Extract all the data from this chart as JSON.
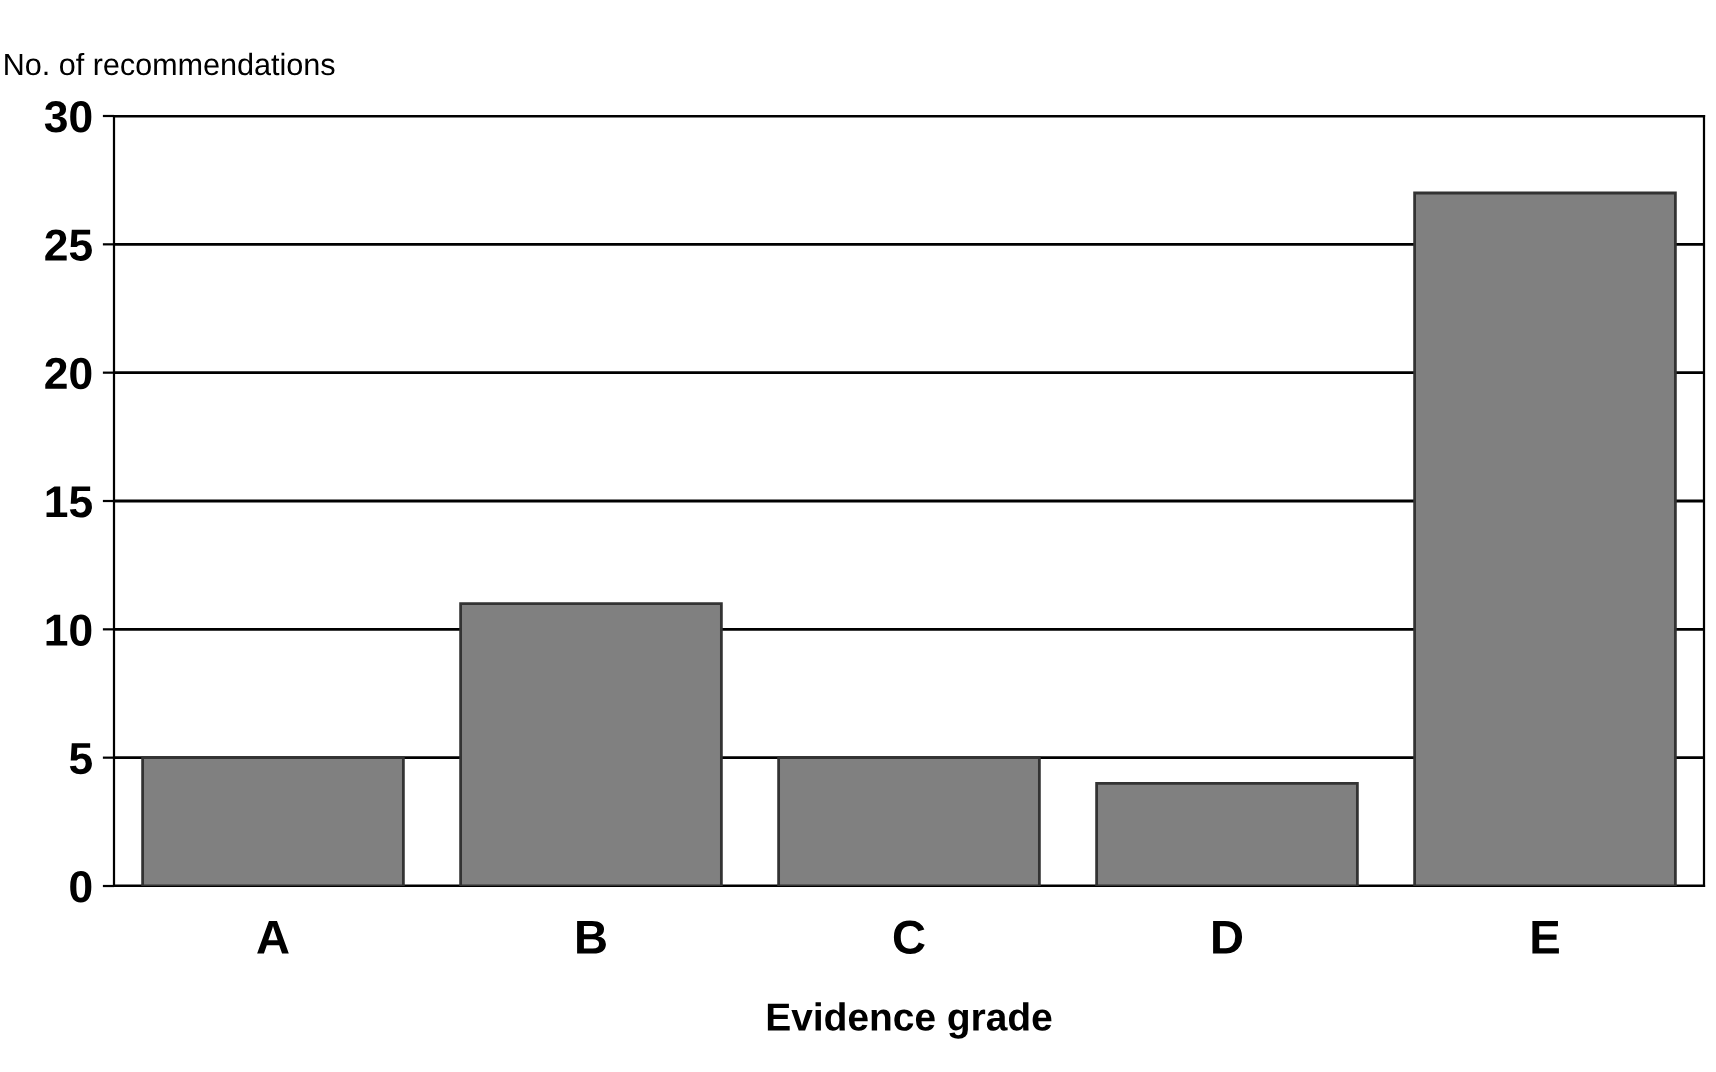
{
  "chart_data": {
    "type": "bar",
    "xlabel": "Evidence grade",
    "ylabel": "No. of recommendations",
    "categories": [
      "A",
      "B",
      "C",
      "D",
      "E"
    ],
    "values": [
      5,
      11,
      5,
      4,
      27
    ],
    "color": "#808080",
    "ylim": [
      0,
      30
    ],
    "yticks": [
      0,
      5,
      10,
      15,
      20,
      25,
      30
    ],
    "grid": "y",
    "legend": false
  }
}
